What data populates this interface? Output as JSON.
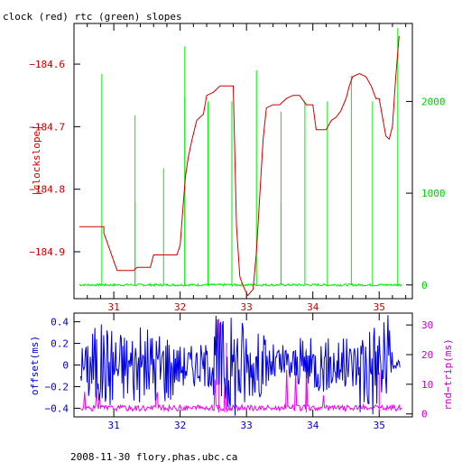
{
  "title": "clock (red) rtc (green) slopes",
  "footer": "2008-11-30 flory.phas.ubc.ca",
  "colors": {
    "clock": "#cc0000",
    "rtc": "#00ee00",
    "offset": "#0000dd",
    "rtt": "#ee00ee",
    "axis": "#000000"
  },
  "chart_data": [
    {
      "type": "line",
      "name": "clock-rtc-slopes",
      "title": "clock (red) rtc (green) slopes",
      "x_ticks": [
        31,
        32,
        33,
        34,
        35
      ],
      "xlim": [
        30.4,
        35.5
      ],
      "left_axis": {
        "label": "|clockslope|",
        "ticks": [
          -184.6,
          -184.7,
          -184.8,
          -184.9
        ],
        "ylim": [
          -184.975,
          -184.535
        ]
      },
      "right_axis": {
        "ticks": [
          0,
          1000,
          2000
        ],
        "ylim": [
          -150,
          2850
        ]
      },
      "series": [
        {
          "axis": "left",
          "x": [
            30.48,
            30.85,
            30.85,
            31.05,
            31.1,
            31.3,
            31.35,
            31.55,
            31.6,
            31.65,
            31.95,
            32.0,
            32.05,
            32.08,
            32.12,
            32.18,
            32.25,
            32.35,
            32.4,
            32.5,
            32.6,
            32.7,
            32.8,
            32.85,
            32.9,
            32.95,
            33.02,
            33.1,
            33.15,
            33.2,
            33.25,
            33.3,
            33.4,
            33.5,
            33.6,
            33.7,
            33.8,
            33.9,
            34.0,
            34.05,
            34.15,
            34.2,
            34.28,
            34.35,
            34.42,
            34.5,
            34.55,
            34.6,
            34.7,
            34.8,
            34.88,
            34.95,
            35.0,
            35.1,
            35.15,
            35.2,
            35.25,
            35.3
          ],
          "y": [
            -184.86,
            -184.86,
            -184.87,
            -184.93,
            -184.93,
            -184.93,
            -184.925,
            -184.925,
            -184.905,
            -184.905,
            -184.905,
            -184.89,
            -184.82,
            -184.78,
            -184.75,
            -184.72,
            -184.69,
            -184.68,
            -184.65,
            -184.645,
            -184.635,
            -184.635,
            -184.635,
            -184.86,
            -184.94,
            -184.955,
            -184.97,
            -184.96,
            -184.9,
            -184.81,
            -184.72,
            -184.67,
            -184.665,
            -184.665,
            -184.655,
            -184.65,
            -184.65,
            -184.665,
            -184.665,
            -184.705,
            -184.705,
            -184.705,
            -184.69,
            -184.685,
            -184.675,
            -184.655,
            -184.635,
            -184.62,
            -184.615,
            -184.62,
            -184.635,
            -184.655,
            -184.655,
            -184.715,
            -184.72,
            -184.7,
            -184.62,
            -184.555
          ],
          "spikes": []
        },
        {
          "axis": "right",
          "baseline": 0,
          "spikes": [
            {
              "x": 30.82,
              "y": 2300
            },
            {
              "x": 31.32,
              "y": 1850
            },
            {
              "x": 31.32,
              "y": 900
            },
            {
              "x": 31.75,
              "y": 1270
            },
            {
              "x": 32.07,
              "y": 2600
            },
            {
              "x": 32.07,
              "y": 2050
            },
            {
              "x": 32.42,
              "y": 2000
            },
            {
              "x": 32.78,
              "y": 2000
            },
            {
              "x": 33.15,
              "y": 2340
            },
            {
              "x": 33.52,
              "y": 1890
            },
            {
              "x": 33.52,
              "y": 900
            },
            {
              "x": 33.88,
              "y": 2000
            },
            {
              "x": 34.22,
              "y": 2000
            },
            {
              "x": 34.58,
              "y": 2280
            },
            {
              "x": 34.9,
              "y": 2000
            },
            {
              "x": 35.28,
              "y": 2800
            }
          ]
        }
      ]
    },
    {
      "type": "line",
      "name": "offset-rtt",
      "x_ticks": [
        31,
        32,
        33,
        34,
        35
      ],
      "xlim": [
        30.4,
        35.5
      ],
      "left_axis": {
        "label": "offset(ms)",
        "ticks": [
          0.4,
          0.2,
          0,
          -0.2,
          -0.4
        ],
        "ylim": [
          -0.48,
          0.48
        ]
      },
      "right_axis": {
        "label": "rnd−trip(ms)",
        "ticks": [
          30,
          20,
          10,
          0
        ],
        "ylim": [
          -1,
          34
        ]
      }
    }
  ]
}
